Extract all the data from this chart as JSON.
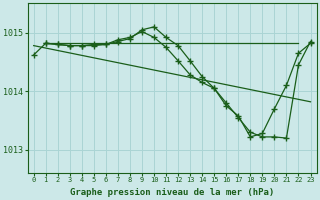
{
  "title": "Graphe pression niveau de la mer (hPa)",
  "bg_color": "#cce8e8",
  "grid_color": "#aad4d4",
  "line_color": "#1a5e1a",
  "xlim": [
    -0.5,
    23.5
  ],
  "ylim": [
    1012.6,
    1015.5
  ],
  "yticks": [
    1013,
    1014,
    1015
  ],
  "xticks": [
    0,
    1,
    2,
    3,
    4,
    5,
    6,
    7,
    8,
    9,
    10,
    11,
    12,
    13,
    14,
    15,
    16,
    17,
    18,
    19,
    20,
    21,
    22,
    23
  ],
  "line1": {
    "x": [
      0,
      23
    ],
    "y": [
      1014.78,
      1013.82
    ]
  },
  "line2": {
    "x": [
      1,
      22
    ],
    "y": [
      1014.82,
      1014.82
    ]
  },
  "line3": {
    "x": [
      0,
      1,
      2,
      3,
      4,
      5,
      6,
      7,
      8,
      9,
      10,
      11,
      12,
      13,
      14,
      15,
      16,
      17,
      18,
      19,
      20,
      21,
      22,
      23
    ],
    "y": [
      1014.62,
      1014.82,
      1014.8,
      1014.78,
      1014.78,
      1014.78,
      1014.8,
      1014.88,
      1014.92,
      1015.02,
      1014.92,
      1014.75,
      1014.52,
      1014.28,
      1014.15,
      1014.05,
      1013.75,
      1013.58,
      1013.22,
      1013.28,
      1013.7,
      1014.1,
      1014.65,
      1014.82
    ],
    "has_markers": true
  },
  "line4": {
    "x": [
      1,
      2,
      3,
      4,
      5,
      6,
      7,
      8,
      9,
      10,
      11,
      12,
      13,
      14,
      15,
      16,
      17,
      18,
      19,
      20,
      21,
      22,
      23
    ],
    "y": [
      1014.82,
      1014.8,
      1014.78,
      1014.78,
      1014.8,
      1014.8,
      1014.85,
      1014.9,
      1015.05,
      1015.1,
      1014.92,
      1014.78,
      1014.52,
      1014.25,
      1014.05,
      1013.8,
      1013.55,
      1013.3,
      1013.22,
      1013.22,
      1013.2,
      1014.45,
      1014.85
    ],
    "has_markers": true
  }
}
